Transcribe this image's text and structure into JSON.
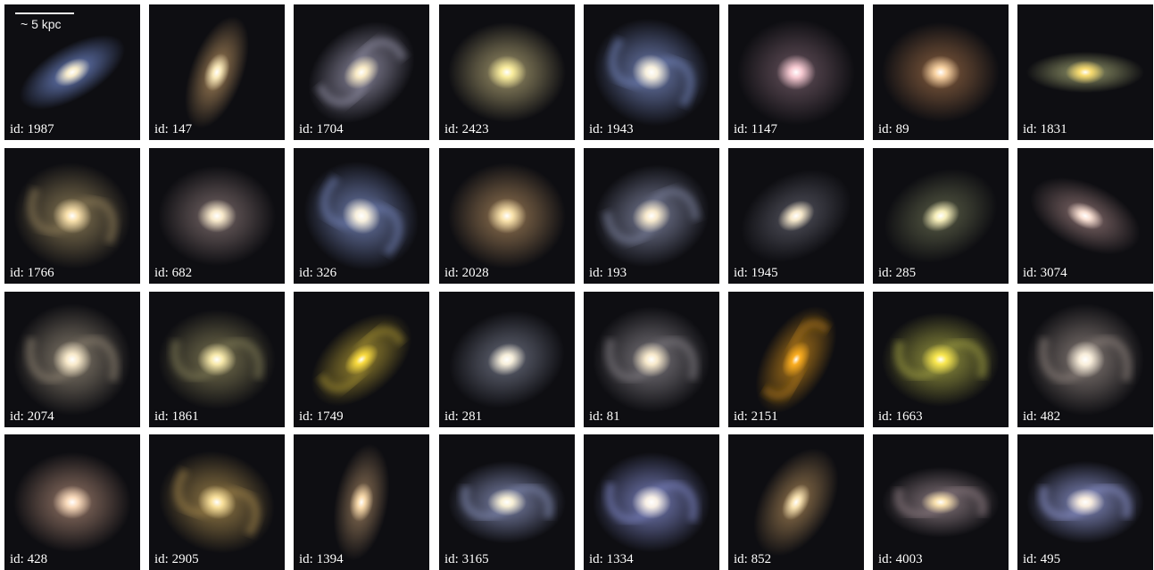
{
  "scale_label": "~ 5 kpc",
  "galaxies": [
    {
      "label": "id: 1987",
      "hue": "#6f86c9",
      "core": "#fff2cc",
      "arms": 0,
      "incl": 0.45,
      "rot": -30
    },
    {
      "label": "id: 147",
      "hue": "#a9865a",
      "core": "#fff0c0",
      "arms": 0,
      "incl": 0.45,
      "rot": -70
    },
    {
      "label": "id: 1704",
      "hue": "#8d8aa0",
      "core": "#fff0c8",
      "arms": 2,
      "incl": 0.75,
      "rot": -40
    },
    {
      "label": "id: 2423",
      "hue": "#a59a6e",
      "core": "#fff2a0",
      "arms": 0,
      "incl": 0.85,
      "rot": 0
    },
    {
      "label": "id: 1943",
      "hue": "#6f7fb4",
      "core": "#fff6e0",
      "arms": 2,
      "incl": 0.9,
      "rot": 20
    },
    {
      "label": "id: 1147",
      "hue": "#6a5560",
      "core": "#ffd0d8",
      "arms": 0,
      "incl": 0.9,
      "rot": 0
    },
    {
      "label": "id: 89",
      "hue": "#8a6040",
      "core": "#ffd9a8",
      "arms": 0,
      "incl": 0.85,
      "rot": 0
    },
    {
      "label": "id: 1831",
      "hue": "#9ca070",
      "core": "#ffe070",
      "arms": 0,
      "incl": 0.35,
      "rot": 0
    },
    {
      "label": "id: 1766",
      "hue": "#8a7a55",
      "core": "#ffe6b0",
      "arms": 2,
      "incl": 0.9,
      "rot": 10
    },
    {
      "label": "id: 682",
      "hue": "#7a6a6a",
      "core": "#fff0d0",
      "arms": 0,
      "incl": 0.85,
      "rot": 0
    },
    {
      "label": "id: 326",
      "hue": "#6f7eb0",
      "core": "#fff6e0",
      "arms": 2,
      "incl": 0.9,
      "rot": 30
    },
    {
      "label": "id: 2028",
      "hue": "#9a7a55",
      "core": "#ffe8b0",
      "arms": 0,
      "incl": 0.9,
      "rot": 0
    },
    {
      "label": "id: 193",
      "hue": "#7a7f9a",
      "core": "#fff0d0",
      "arms": 2,
      "incl": 0.85,
      "rot": -20
    },
    {
      "label": "id: 1945",
      "hue": "#555560",
      "core": "#fff0d0",
      "arms": 0,
      "incl": 0.7,
      "rot": -30
    },
    {
      "label": "id: 285",
      "hue": "#5c6048",
      "core": "#fff6c0",
      "arms": 0,
      "incl": 0.75,
      "rot": -25
    },
    {
      "label": "id: 3074",
      "hue": "#8a7070",
      "core": "#ffe6d8",
      "arms": 0,
      "incl": 0.55,
      "rot": 25
    },
    {
      "label": "id: 2074",
      "hue": "#8a8070",
      "core": "#fff0d0",
      "arms": 2,
      "incl": 0.95,
      "rot": 0
    },
    {
      "label": "id: 1861",
      "hue": "#7c7652",
      "core": "#fff0b0",
      "arms": 2,
      "incl": 0.85,
      "rot": 0
    },
    {
      "label": "id: 1749",
      "hue": "#9e8a30",
      "core": "#ffe040",
      "arms": 2,
      "incl": 0.6,
      "rot": -40
    },
    {
      "label": "id: 281",
      "hue": "#6a6e7e",
      "core": "#fff6e0",
      "arms": 0,
      "incl": 0.8,
      "rot": -20
    },
    {
      "label": "id: 81",
      "hue": "#7e7a80",
      "core": "#fff0d0",
      "arms": 2,
      "incl": 0.9,
      "rot": 0
    },
    {
      "label": "id: 2151",
      "hue": "#b07818",
      "core": "#ffb020",
      "arms": 2,
      "incl": 0.55,
      "rot": -60
    },
    {
      "label": "id: 1663",
      "hue": "#9a9a40",
      "core": "#ffec50",
      "arms": 2,
      "incl": 0.8,
      "rot": 0
    },
    {
      "label": "id: 482",
      "hue": "#8a7f7a",
      "core": "#fff4e0",
      "arms": 2,
      "incl": 0.95,
      "rot": 0
    },
    {
      "label": "id: 428",
      "hue": "#9a7a6a",
      "core": "#ffe0c0",
      "arms": 0,
      "incl": 0.85,
      "rot": 0
    },
    {
      "label": "id: 2905",
      "hue": "#9a7f48",
      "core": "#ffe6a0",
      "arms": 2,
      "incl": 0.85,
      "rot": 20
    },
    {
      "label": "id: 1394",
      "hue": "#94785a",
      "core": "#ffe0b0",
      "arms": 0,
      "incl": 0.45,
      "rot": -80
    },
    {
      "label": "id: 3165",
      "hue": "#8088b0",
      "core": "#fff6d8",
      "arms": 2,
      "incl": 0.7,
      "rot": 0
    },
    {
      "label": "id: 1334",
      "hue": "#7a82c0",
      "core": "#fff6e8",
      "arms": 2,
      "incl": 0.85,
      "rot": 0
    },
    {
      "label": "id: 852",
      "hue": "#9a7a50",
      "core": "#ffeab8",
      "arms": 0,
      "incl": 0.6,
      "rot": -60
    },
    {
      "label": "id: 4003",
      "hue": "#8a7a80",
      "core": "#ffe6b0",
      "arms": 2,
      "incl": 0.6,
      "rot": 0
    },
    {
      "label": "id: 495",
      "hue": "#8890c8",
      "core": "#fff2e0",
      "arms": 2,
      "incl": 0.7,
      "rot": 0
    }
  ]
}
